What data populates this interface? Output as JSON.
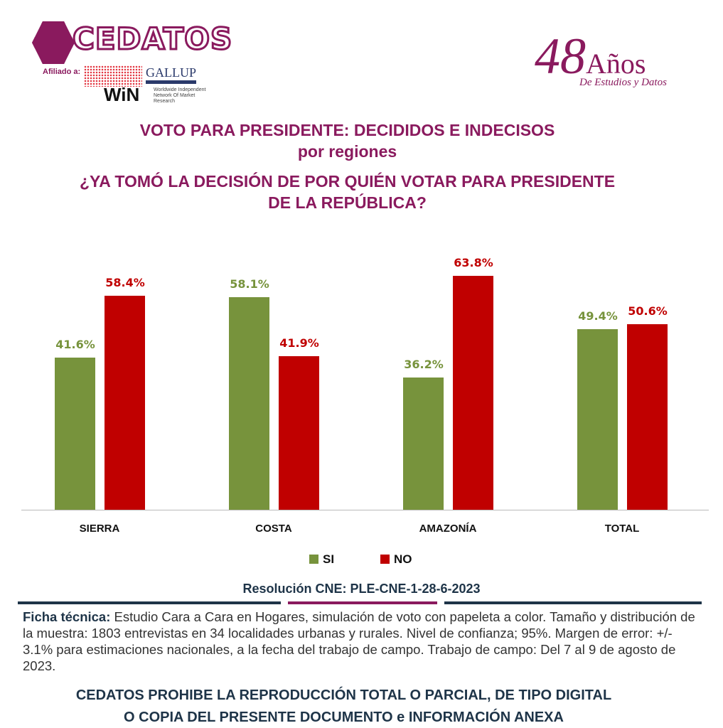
{
  "header": {
    "logo_text": "CEDATOS",
    "affiliate_label": "Afiliado a:",
    "gallup": "GALLUP",
    "win": "WiN",
    "win_sub": "Worldwide Independent Network Of Market Research",
    "years_num": "48",
    "years_word": "Años",
    "years_sub": "De Estudios y Datos"
  },
  "titles": {
    "line1": "VOTO PARA PRESIDENTE: DECIDIDOS E INDECISOS",
    "line2": "por regiones",
    "line3": "¿YA TOMÓ LA DECISIÓN DE POR QUIÉN VOTAR PARA PRESIDENTE",
    "line4": "DE LA REPÚBLICA?"
  },
  "chart_data": {
    "type": "bar",
    "categories": [
      "SIERRA",
      "COSTA",
      "AMAZONÍA",
      "TOTAL"
    ],
    "series": [
      {
        "name": "SI",
        "color": "#77933c",
        "values": [
          41.6,
          58.1,
          36.2,
          49.4
        ],
        "labels": [
          "41.6%",
          "58.1%",
          "36.2%",
          "49.4%"
        ]
      },
      {
        "name": "NO",
        "color": "#c00000",
        "values": [
          58.4,
          41.9,
          63.8,
          50.6
        ],
        "labels": [
          "58.4%",
          "41.9%",
          "63.8%",
          "50.6%"
        ]
      }
    ],
    "ylim": [
      0,
      70
    ],
    "legend": "bottom",
    "grid": false
  },
  "footer": {
    "resolution": "Resolución CNE: PLE-CNE-1-28-6-2023",
    "ficha_label": "Ficha técnica:",
    "ficha_text": " Estudio Cara a Cara en Hogares, simulación de voto con papeleta a color. Tamaño y distribución de la muestra: 1803 entrevistas en 34 localidades urbanas y rurales. Nivel de confianza; 95%. Margen de error: +/- 3.1% para estimaciones nacionales, a la fecha del trabajo de campo. Trabajo de campo: Del 7 al 9 de agosto de 2023.",
    "warning1": "CEDATOS PROHIBE LA REPRODUCCIÓN TOTAL O PARCIAL, DE TIPO DIGITAL",
    "warning2": "O COPIA DEL PRESENTE DOCUMENTO e INFORMACIÓN ANEXA"
  }
}
